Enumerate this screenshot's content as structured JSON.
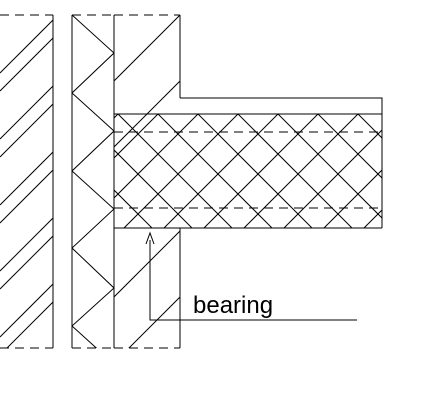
{
  "annotation": {
    "label": "bearing"
  }
}
